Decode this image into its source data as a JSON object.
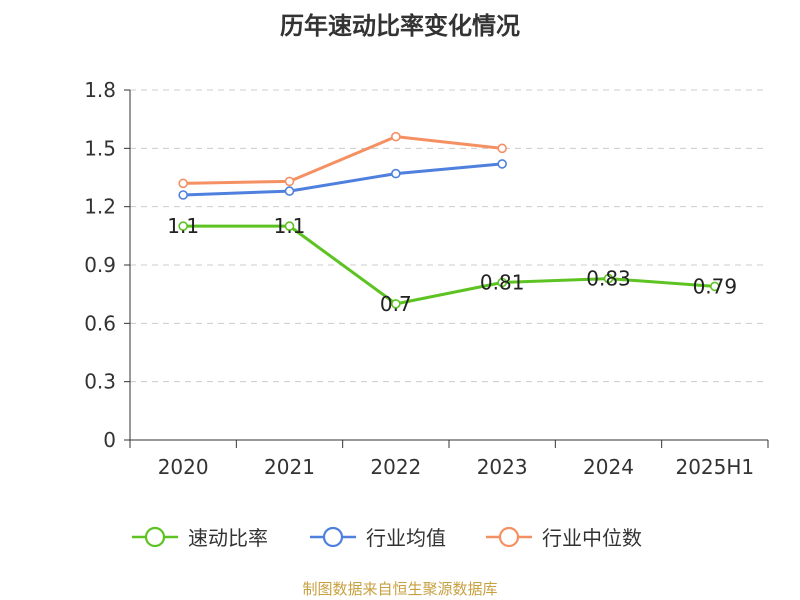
{
  "chart_data": {
    "type": "line",
    "title": "历年速动比率变化情况",
    "categories": [
      "2020",
      "2021",
      "2022",
      "2023",
      "2024",
      "2025H1"
    ],
    "y_ticks": [
      "0",
      "0.3",
      "0.6",
      "0.9",
      "1.2",
      "1.5",
      "1.8"
    ],
    "ylim": [
      0,
      1.8
    ],
    "grid": true,
    "legend_position": "bottom",
    "series": [
      {
        "name": "速动比率",
        "color": "#5cc323",
        "values": [
          1.1,
          1.1,
          0.7,
          0.81,
          0.83,
          0.79
        ],
        "labels": [
          "1.1",
          "1.1",
          "0.7",
          "0.81",
          "0.83",
          "0.79"
        ]
      },
      {
        "name": "行业均值",
        "color": "#4f80de",
        "values": [
          1.26,
          1.28,
          1.37,
          1.42,
          null,
          null
        ]
      },
      {
        "name": "行业中位数",
        "color": "#f59063",
        "values": [
          1.32,
          1.33,
          1.56,
          1.5,
          null,
          null
        ]
      }
    ]
  },
  "source": "制图数据来自恒生聚源数据库"
}
